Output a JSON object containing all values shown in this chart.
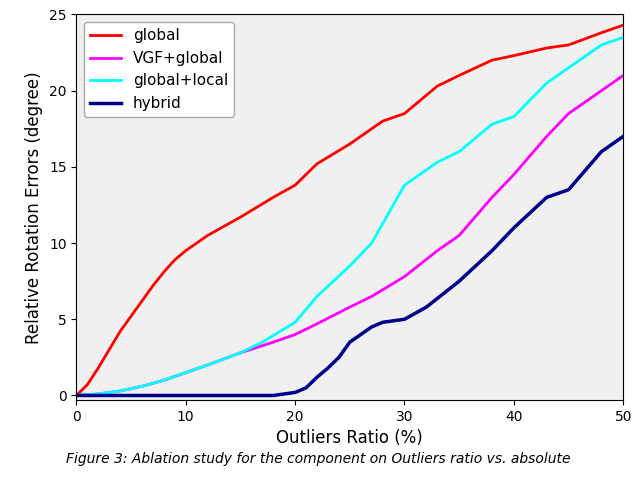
{
  "title": "",
  "xlabel": "Outliers Ratio (%)",
  "ylabel": "Relative Rotation Errors (degree)",
  "xlim": [
    0,
    50
  ],
  "ylim": [
    -0.3,
    25
  ],
  "yticks": [
    0,
    5,
    10,
    15,
    20,
    25
  ],
  "xticks": [
    0,
    10,
    20,
    30,
    40,
    50
  ],
  "series": [
    {
      "label": "global",
      "color": "#ff0000",
      "linewidth": 2.0,
      "x": [
        0,
        1,
        2,
        3,
        4,
        5,
        6,
        7,
        8,
        9,
        10,
        12,
        15,
        18,
        20,
        22,
        25,
        28,
        30,
        33,
        35,
        38,
        40,
        43,
        45,
        48,
        50
      ],
      "y": [
        0,
        0.7,
        1.8,
        3.0,
        4.2,
        5.2,
        6.2,
        7.2,
        8.1,
        8.9,
        9.5,
        10.5,
        11.7,
        13.0,
        13.8,
        15.2,
        16.5,
        18.0,
        18.5,
        20.3,
        21.0,
        22.0,
        22.3,
        22.8,
        23.0,
        23.8,
        24.3
      ]
    },
    {
      "label": "VGF+global",
      "color": "#ff00ff",
      "linewidth": 2.0,
      "x": [
        0,
        2,
        4,
        6,
        8,
        10,
        12,
        15,
        18,
        20,
        22,
        25,
        27,
        30,
        33,
        35,
        38,
        40,
        43,
        45,
        48,
        50
      ],
      "y": [
        0,
        0.1,
        0.3,
        0.6,
        1.0,
        1.5,
        2.0,
        2.8,
        3.5,
        4.0,
        4.7,
        5.8,
        6.5,
        7.8,
        9.5,
        10.5,
        13.0,
        14.5,
        17.0,
        18.5,
        20.0,
        21.0
      ]
    },
    {
      "label": "global+local",
      "color": "#00ffff",
      "linewidth": 2.0,
      "x": [
        0,
        2,
        4,
        6,
        8,
        10,
        12,
        15,
        17,
        20,
        22,
        25,
        27,
        30,
        33,
        35,
        38,
        40,
        43,
        45,
        48,
        50
      ],
      "y": [
        0,
        0.1,
        0.3,
        0.6,
        1.0,
        1.5,
        2.0,
        2.8,
        3.5,
        4.8,
        6.5,
        8.5,
        10.0,
        13.8,
        15.3,
        16.0,
        17.8,
        18.3,
        20.5,
        21.5,
        23.0,
        23.5
      ]
    },
    {
      "label": "hybrid",
      "color": "#00008b",
      "linewidth": 2.5,
      "x": [
        0,
        2,
        4,
        6,
        8,
        10,
        12,
        14,
        16,
        18,
        20,
        21,
        22,
        23,
        24,
        25,
        26,
        27,
        28,
        30,
        32,
        35,
        38,
        40,
        43,
        45,
        48,
        50
      ],
      "y": [
        0,
        0.0,
        0.0,
        0.0,
        0.0,
        0.0,
        0.0,
        0.0,
        0.0,
        0.0,
        0.2,
        0.5,
        1.2,
        1.8,
        2.5,
        3.5,
        4.0,
        4.5,
        4.8,
        5.0,
        5.8,
        7.5,
        9.5,
        11.0,
        13.0,
        13.5,
        16.0,
        17.0
      ]
    }
  ],
  "legend_loc": "upper left",
  "figure_facecolor": "#ffffff",
  "axes_facecolor": "#f0f0f0",
  "caption": "Figure 3: Ablation study for the component on Outliers ratio vs. absolute",
  "caption_fontsize": 10,
  "figsize": [
    6.36,
    4.82
  ],
  "plot_area_bottom": 0.17
}
